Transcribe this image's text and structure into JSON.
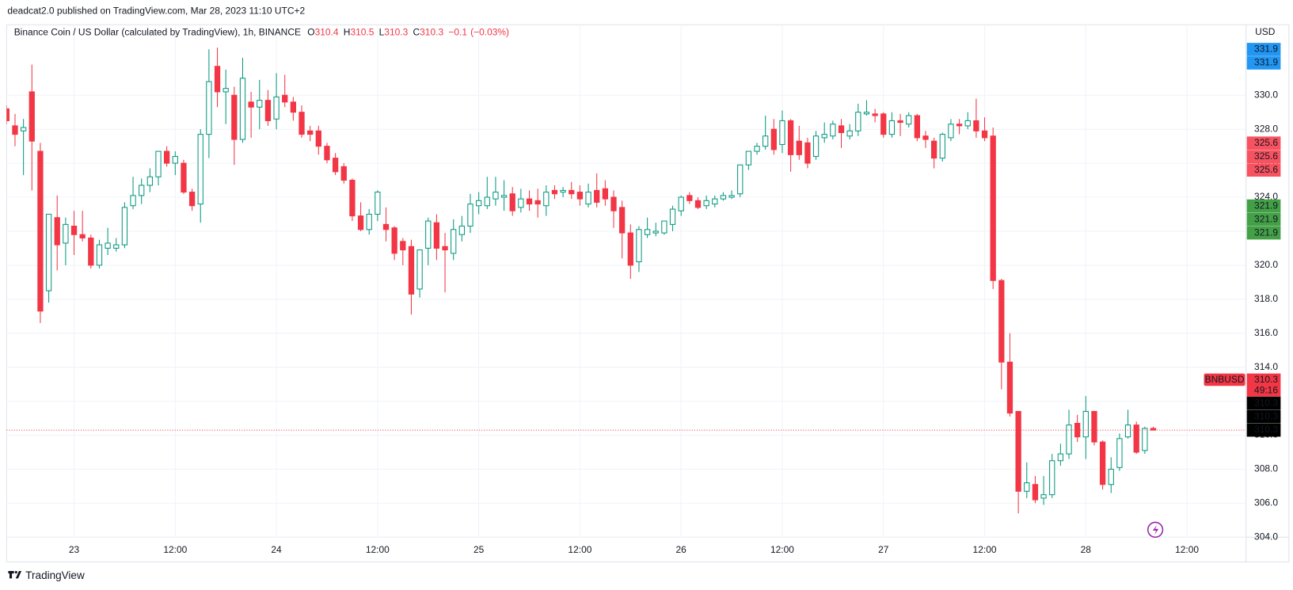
{
  "chart_data": {
    "type": "candlestick",
    "header": "deadcat2.0 published on TradingView.com, Mar 28, 2023 11:10 UTC+2",
    "title": "Binance Coin / US Dollar (calculated by TradingView), 1h, BINANCE",
    "ohlc_legend": [
      {
        "key": "O",
        "value": 310.4
      },
      {
        "key": "H",
        "value": 310.5
      },
      {
        "key": "L",
        "value": 310.3
      },
      {
        "key": "C",
        "value": 310.3
      }
    ],
    "change": {
      "value": -0.1,
      "label": "−0.1"
    },
    "change_pct": {
      "value": -0.03,
      "label": "(−0.03%)"
    },
    "currency": "USD",
    "footer": "TradingView",
    "up_color": "#089981",
    "down_color": "#f23645",
    "x": [
      -8,
      -7,
      -6,
      -5,
      -4,
      -3,
      -2,
      -1,
      0,
      1,
      2,
      3,
      4,
      5,
      6,
      7,
      8,
      9,
      10,
      11,
      12,
      13,
      14,
      15,
      16,
      17,
      18,
      19,
      20,
      21,
      22,
      23,
      24,
      25,
      26,
      27,
      28,
      29,
      30,
      31,
      32,
      33,
      34,
      35,
      36,
      37,
      38,
      39,
      40,
      41,
      42,
      43,
      44,
      45,
      46,
      47,
      48,
      49,
      50,
      51,
      52,
      53,
      54,
      55,
      56,
      57,
      58,
      59,
      60,
      61,
      62,
      63,
      64,
      65,
      66,
      67,
      68,
      69,
      70,
      71,
      72,
      73,
      74,
      75,
      76,
      77,
      78,
      79,
      80,
      81,
      82,
      83,
      84,
      85,
      86,
      87,
      88,
      89,
      90,
      91,
      92,
      93,
      94,
      95,
      96,
      97,
      98,
      99,
      100,
      101,
      102,
      103,
      104,
      105,
      106,
      107,
      108,
      109,
      110,
      111,
      112,
      113,
      114,
      115,
      116,
      117,
      118,
      119,
      120,
      121,
      122,
      123,
      124,
      125,
      126,
      127,
      128
    ],
    "open": [
      329.2,
      328.2,
      327.9,
      330.2,
      326.7,
      318.5,
      322.8,
      321.3,
      322.3,
      321.8,
      321.6,
      320.0,
      321.0,
      321.0,
      321.2,
      323.5,
      324.1,
      324.7,
      325.2,
      326.7,
      326.0,
      326.0,
      324.3,
      323.6,
      327.7,
      331.7,
      330.2,
      330.0,
      327.4,
      329.6,
      329.3,
      329.7,
      328.6,
      330.0,
      329.6,
      329.0,
      327.9,
      327.9,
      327.0,
      326.3,
      325.8,
      325.0,
      322.9,
      322.1,
      323.0,
      322.4,
      322.2,
      321.4,
      321.1,
      318.6,
      321.0,
      322.5,
      321.1,
      320.7,
      321.8,
      322.3,
      323.5,
      323.5,
      323.9,
      324.0,
      324.2,
      323.4,
      323.9,
      323.8,
      323.5,
      324.4,
      324.3,
      324.4,
      324.3,
      323.6,
      324.4,
      324.5,
      324.0,
      323.4,
      321.9,
      320.2,
      321.8,
      321.9,
      321.9,
      322.4,
      323.2,
      324.1,
      323.8,
      323.5,
      323.6,
      323.9,
      324.0,
      324.2,
      325.9,
      326.7,
      327.0,
      328.0,
      327.1,
      328.5,
      327.3,
      327.2,
      326.4,
      327.5,
      327.6,
      328.2,
      327.6,
      327.9,
      328.9,
      328.9,
      328.9,
      327.7,
      328.5,
      328.3,
      328.8,
      327.6,
      327.3,
      326.3,
      327.5,
      328.3,
      328.2,
      328.5,
      327.9,
      327.6,
      319.1,
      314.3,
      311.4,
      306.7,
      307.1,
      306.3,
      306.5,
      308.5,
      308.9,
      310.7,
      309.9,
      311.4,
      309.6,
      307.1,
      308.1,
      309.9,
      310.6,
      309.1,
      310.4
    ],
    "high": [
      329.4,
      328.9,
      328.6,
      331.8,
      327.2,
      323.0,
      324.1,
      322.8,
      323.2,
      323.2,
      321.8,
      321.5,
      322.2,
      321.6,
      323.7,
      325.2,
      325.1,
      325.7,
      326.7,
      327.0,
      326.7,
      326.2,
      324.5,
      328.0,
      332.7,
      332.8,
      331.5,
      330.5,
      332.2,
      330.2,
      330.9,
      330.3,
      331.3,
      331.2,
      329.9,
      329.4,
      328.2,
      328.2,
      327.2,
      326.6,
      326.0,
      325.1,
      323.7,
      323.3,
      324.4,
      323.4,
      322.3,
      321.6,
      321.5,
      320.9,
      322.8,
      323.0,
      321.9,
      322.7,
      322.9,
      324.2,
      324.3,
      325.2,
      325.2,
      325.0,
      324.6,
      324.5,
      324.4,
      324.5,
      324.7,
      324.7,
      324.6,
      324.9,
      324.7,
      324.8,
      325.4,
      325.0,
      324.4,
      323.8,
      322.4,
      322.3,
      322.8,
      322.5,
      322.6,
      323.5,
      324.1,
      324.3,
      324.0,
      324.1,
      324.1,
      324.3,
      324.4,
      325.9,
      326.7,
      327.2,
      328.8,
      328.6,
      329.1,
      328.6,
      328.2,
      327.5,
      327.9,
      328.4,
      328.5,
      328.6,
      328.3,
      329.5,
      329.7,
      329.2,
      329.0,
      329.0,
      328.9,
      329.0,
      328.9,
      327.9,
      327.5,
      327.8,
      328.6,
      328.6,
      329.0,
      329.8,
      328.7,
      328.1,
      319.2,
      316.0,
      311.4,
      308.4,
      307.6,
      307.6,
      308.9,
      309.5,
      311.5,
      311.2,
      312.3,
      311.4,
      309.7,
      308.7,
      310.1,
      311.5,
      310.8,
      310.5,
      310.5
    ],
    "low": [
      328.3,
      327.0,
      325.3,
      324.4,
      316.6,
      317.8,
      319.7,
      320.0,
      320.6,
      321.4,
      319.8,
      319.8,
      320.6,
      320.8,
      321.0,
      323.3,
      323.6,
      324.3,
      324.7,
      325.8,
      325.3,
      324.2,
      323.2,
      322.5,
      326.3,
      329.3,
      328.3,
      325.9,
      327.2,
      327.5,
      328.0,
      328.2,
      328.0,
      329.3,
      328.5,
      327.5,
      327.3,
      326.5,
      326.0,
      325.3,
      324.8,
      322.6,
      322.0,
      321.8,
      322.6,
      321.4,
      320.3,
      320.0,
      317.1,
      318.1,
      320.0,
      320.3,
      318.4,
      320.3,
      321.4,
      321.9,
      323.0,
      323.3,
      323.5,
      323.2,
      322.9,
      323.1,
      323.2,
      322.8,
      322.9,
      323.9,
      324.0,
      323.9,
      323.5,
      323.4,
      323.4,
      323.5,
      322.2,
      320.4,
      319.2,
      319.6,
      321.6,
      321.7,
      321.8,
      322.0,
      322.9,
      323.6,
      323.3,
      323.3,
      323.4,
      323.8,
      323.9,
      324.0,
      325.6,
      326.5,
      326.8,
      326.5,
      326.6,
      325.5,
      326.2,
      325.7,
      326.2,
      327.2,
      327.4,
      326.9,
      327.4,
      327.6,
      328.8,
      328.4,
      327.5,
      327.5,
      327.6,
      328.1,
      327.3,
      326.9,
      325.7,
      326.1,
      327.3,
      327.7,
      328.0,
      327.5,
      327.3,
      318.6,
      312.7,
      311.1,
      305.4,
      306.3,
      306.0,
      305.9,
      306.3,
      308.2,
      308.6,
      309.6,
      308.6,
      309.4,
      306.8,
      306.6,
      307.9,
      309.8,
      308.9,
      308.9,
      310.3
    ],
    "close": [
      328.5,
      327.7,
      328.1,
      327.3,
      317.3,
      323.0,
      321.2,
      322.4,
      321.8,
      321.6,
      320.0,
      321.2,
      321.3,
      321.2,
      323.4,
      324.1,
      324.7,
      325.2,
      326.7,
      326.0,
      326.4,
      324.3,
      323.5,
      327.7,
      330.8,
      330.2,
      330.4,
      327.4,
      331.0,
      329.3,
      329.7,
      328.5,
      329.9,
      329.6,
      329.0,
      327.7,
      327.7,
      327.0,
      326.2,
      325.5,
      325.0,
      322.9,
      322.1,
      323.0,
      324.3,
      322.1,
      320.7,
      320.9,
      318.3,
      320.9,
      322.6,
      321.0,
      320.9,
      322.1,
      322.3,
      323.6,
      323.8,
      324.0,
      324.3,
      324.1,
      323.2,
      323.9,
      323.6,
      323.6,
      324.3,
      324.2,
      324.4,
      324.2,
      323.9,
      324.3,
      323.7,
      323.9,
      323.2,
      321.9,
      320.0,
      322.1,
      322.1,
      322.0,
      322.6,
      323.3,
      324.0,
      323.8,
      323.4,
      323.8,
      323.9,
      324.1,
      324.1,
      325.9,
      326.7,
      327.0,
      327.6,
      326.8,
      328.5,
      326.5,
      326.5,
      326.0,
      327.6,
      327.7,
      328.3,
      327.8,
      327.9,
      329.0,
      329.0,
      328.8,
      327.7,
      328.5,
      328.4,
      328.8,
      327.5,
      327.4,
      326.3,
      327.7,
      328.3,
      328.2,
      328.5,
      327.9,
      327.5,
      319.1,
      314.3,
      311.3,
      306.7,
      307.2,
      306.2,
      306.5,
      308.5,
      308.9,
      310.6,
      309.9,
      311.4,
      309.6,
      307.1,
      308.0,
      309.8,
      310.6,
      309.0,
      310.4,
      310.3
    ],
    "xlim": [
      -8,
      139
    ],
    "xticks": [
      {
        "value": 0,
        "label": "23"
      },
      {
        "value": 12,
        "label": "12:00"
      },
      {
        "value": 24,
        "label": "24"
      },
      {
        "value": 36,
        "label": "12:00"
      },
      {
        "value": 48,
        "label": "25"
      },
      {
        "value": 60,
        "label": "12:00"
      },
      {
        "value": 72,
        "label": "26"
      },
      {
        "value": 84,
        "label": "12:00"
      },
      {
        "value": 96,
        "label": "27"
      },
      {
        "value": 108,
        "label": "12:00"
      },
      {
        "value": 120,
        "label": "28"
      },
      {
        "value": 132,
        "label": "12:00"
      }
    ],
    "ylim": [
      304,
      334
    ],
    "yticks": [
      {
        "value": 304,
        "label": "304.0"
      },
      {
        "value": 306,
        "label": "306.0"
      },
      {
        "value": 308,
        "label": "308.0"
      },
      {
        "value": 310,
        "label": "310.0"
      },
      {
        "value": 312,
        "label": "312.0"
      },
      {
        "value": 314,
        "label": "314.0"
      },
      {
        "value": 316,
        "label": "316.0"
      },
      {
        "value": 318,
        "label": "318.0"
      },
      {
        "value": 320,
        "label": "320.0"
      },
      {
        "value": 322,
        "label": "322.0"
      },
      {
        "value": 324,
        "label": "324.0"
      },
      {
        "value": 326,
        "label": "326.0"
      },
      {
        "value": 328,
        "label": "328.0"
      },
      {
        "value": 330,
        "label": "330.0"
      }
    ],
    "grid": true,
    "price_labels": [
      {
        "value": 331.9,
        "color": "#2196f3"
      },
      {
        "value": 331.9,
        "color": "#2196f3"
      },
      {
        "value": 325.6,
        "color": "#f7525f"
      },
      {
        "value": 325.6,
        "color": "#f7525f"
      },
      {
        "value": 325.6,
        "color": "#f7525f"
      },
      {
        "value": 321.9,
        "color": "#43a047"
      },
      {
        "value": 321.9,
        "color": "#43a047"
      },
      {
        "value": 321.9,
        "color": "#43a047"
      },
      {
        "value": 310.3,
        "color": "#000000"
      },
      {
        "value": 310.3,
        "color": "#000000"
      },
      {
        "value": 310.3,
        "color": "#000000"
      }
    ],
    "last_price": {
      "symbol": "BNBUSD",
      "value": 310.3,
      "countdown": "49:16",
      "color": "#f23645"
    }
  }
}
